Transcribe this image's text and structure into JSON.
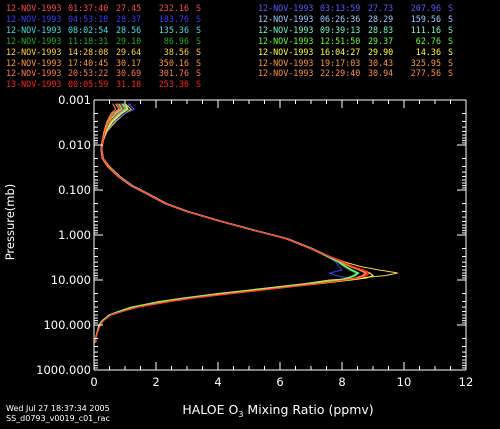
{
  "footer": {
    "date": "Wed Jul 27 18:37:34 2005",
    "file": "SS_d0793_v0019_c01_rac"
  },
  "legend_left": [
    {
      "date": "12-NOV-1993",
      "time": "01:37:40",
      "val": "27.45",
      "lon": "232.16",
      "hem": "S",
      "color": "#ff4a4a"
    },
    {
      "date": "12-NOV-1993",
      "time": "04:53:18",
      "val": "28.37",
      "lon": "183.76",
      "hem": "S",
      "color": "#3a3aff"
    },
    {
      "date": "12-NOV-1993",
      "time": "08:02:54",
      "val": "28.56",
      "lon": "135.36",
      "hem": "S",
      "color": "#33e6e6"
    },
    {
      "date": "12-NOV-1993",
      "time": "11:18:31",
      "val": "29.10",
      "lon": "86.96",
      "hem": "S",
      "color": "#22aa22"
    },
    {
      "date": "12-NOV-1993",
      "time": "14:28:08",
      "val": "29.64",
      "lon": "38.56",
      "hem": "S",
      "color": "#ffd23a"
    },
    {
      "date": "12-NOV-1993",
      "time": "17:40:45",
      "val": "30.17",
      "lon": "350.16",
      "hem": "S",
      "color": "#ff9933"
    },
    {
      "date": "12-NOV-1993",
      "time": "20:53:22",
      "val": "30.69",
      "lon": "301.76",
      "hem": "S",
      "color": "#ff7744"
    },
    {
      "date": "13-NOV-1993",
      "time": "00:05:59",
      "val": "31.18",
      "lon": "253.36",
      "hem": "S",
      "color": "#ff2222"
    }
  ],
  "legend_right": [
    {
      "date": "12-NOV-1993",
      "time": "03:13:59",
      "val": "27.73",
      "lon": "207.96",
      "hem": "S",
      "color": "#5a5aff"
    },
    {
      "date": "12-NOV-1993",
      "time": "06:26:36",
      "val": "28.29",
      "lon": "159.56",
      "hem": "S",
      "color": "#99ccff"
    },
    {
      "date": "12-NOV-1993",
      "time": "09:39:13",
      "val": "28.83",
      "lon": "111.16",
      "hem": "S",
      "color": "#66ffcc"
    },
    {
      "date": "12-NOV-1993",
      "time": "12:51:50",
      "val": "29.37",
      "lon": "62.76",
      "hem": "S",
      "color": "#66ff33"
    },
    {
      "date": "12-NOV-1993",
      "time": "16:04:27",
      "val": "29.90",
      "lon": "14.36",
      "hem": "S",
      "color": "#ffff33"
    },
    {
      "date": "12-NOV-1993",
      "time": "19:17:03",
      "val": "30.43",
      "lon": "325.95",
      "hem": "S",
      "color": "#ff9933"
    },
    {
      "date": "12-NOV-1993",
      "time": "22:29:40",
      "val": "30.94",
      "lon": "277.56",
      "hem": "S",
      "color": "#ff8c3a"
    }
  ],
  "chart_data": {
    "type": "line",
    "xlabel_pre": "HALOE O",
    "xlabel_sub": "3",
    "xlabel_post": " Mixing Ratio (ppmv)",
    "ylabel": "Pressure(mb)",
    "xlim": [
      0,
      12
    ],
    "ylim": [
      0.001,
      1000
    ],
    "y_scale": "log",
    "y_reversed": true,
    "x_ticks": [
      "0",
      "2",
      "4",
      "6",
      "8",
      "10",
      "12"
    ],
    "y_ticks": [
      "0.001",
      "0.010",
      "0.100",
      "1.000",
      "10.000",
      "100.000",
      "1000.000"
    ],
    "profile_pressure": [
      0.0012,
      0.0016,
      0.002,
      0.003,
      0.005,
      0.008,
      0.012,
      0.02,
      0.03,
      0.05,
      0.08,
      0.12,
      0.2,
      0.3,
      0.5,
      0.8,
      1.2,
      2,
      3,
      4,
      5,
      6,
      7,
      8,
      9,
      10,
      12,
      15,
      20,
      25,
      30,
      40,
      50,
      60,
      80,
      100,
      150,
      200,
      250
    ],
    "series": [
      {
        "color": "#ff4a4a",
        "values": [
          0.8,
          0.9,
          0.7,
          0.5,
          0.35,
          0.3,
          0.25,
          0.3,
          0.45,
          0.8,
          1.2,
          1.7,
          2.3,
          3.0,
          4.1,
          5.2,
          6.2,
          7.0,
          7.6,
          8.0,
          8.3,
          8.6,
          8.8,
          8.7,
          8.5,
          8.1,
          7.2,
          6.0,
          4.4,
          3.2,
          2.4,
          1.4,
          0.9,
          0.55,
          0.3,
          0.2,
          0.1,
          0.06,
          0.05
        ]
      },
      {
        "color": "#3a3aff",
        "values": [
          1.2,
          1.0,
          0.8,
          0.6,
          0.4,
          0.3,
          0.25,
          0.3,
          0.5,
          0.85,
          1.25,
          1.75,
          2.35,
          3.05,
          4.15,
          5.25,
          6.25,
          7.05,
          7.5,
          7.8,
          7.9,
          8.0,
          7.6,
          7.8,
          8.2,
          7.9,
          7.1,
          5.9,
          4.3,
          3.1,
          2.3,
          1.3,
          0.85,
          0.5,
          0.28,
          0.18,
          0.1,
          0.06,
          0.05
        ]
      },
      {
        "color": "#33e6e6",
        "values": [
          0.9,
          1.1,
          0.9,
          0.6,
          0.38,
          0.28,
          0.24,
          0.28,
          0.48,
          0.82,
          1.22,
          1.72,
          2.32,
          3.02,
          4.12,
          5.22,
          6.22,
          7.02,
          7.55,
          7.9,
          8.1,
          8.3,
          8.5,
          8.4,
          8.2,
          7.9,
          7.0,
          5.8,
          4.2,
          3.0,
          2.2,
          1.25,
          0.8,
          0.5,
          0.27,
          0.17,
          0.1,
          0.06,
          0.05
        ]
      },
      {
        "color": "#22aa22",
        "values": [
          0.7,
          0.8,
          0.6,
          0.45,
          0.33,
          0.27,
          0.23,
          0.27,
          0.44,
          0.78,
          1.18,
          1.68,
          2.28,
          2.98,
          4.08,
          5.18,
          6.18,
          6.98,
          7.5,
          7.85,
          8.05,
          8.25,
          8.45,
          8.35,
          8.15,
          7.85,
          6.95,
          5.75,
          4.15,
          2.95,
          2.15,
          1.2,
          0.78,
          0.48,
          0.26,
          0.16,
          0.09,
          0.05,
          0.04
        ]
      },
      {
        "color": "#ffd23a",
        "values": [
          1.0,
          1.2,
          1.0,
          0.7,
          0.42,
          0.3,
          0.25,
          0.3,
          0.5,
          0.84,
          1.24,
          1.74,
          2.34,
          3.04,
          4.14,
          5.24,
          6.24,
          7.04,
          7.6,
          8.1,
          8.6,
          9.2,
          9.8,
          9.4,
          8.6,
          7.6,
          6.8,
          5.6,
          4.0,
          2.9,
          2.1,
          1.2,
          0.78,
          0.48,
          0.26,
          0.16,
          0.09,
          0.05,
          0.04
        ]
      },
      {
        "color": "#ff9933",
        "values": [
          0.6,
          0.7,
          0.55,
          0.42,
          0.32,
          0.26,
          0.22,
          0.26,
          0.43,
          0.77,
          1.17,
          1.67,
          2.27,
          2.97,
          4.07,
          5.17,
          6.17,
          6.97,
          7.55,
          7.95,
          8.25,
          8.55,
          8.75,
          8.65,
          8.45,
          8.05,
          7.15,
          5.95,
          4.35,
          3.15,
          2.35,
          1.35,
          0.88,
          0.52,
          0.29,
          0.19,
          0.1,
          0.06,
          0.05
        ]
      },
      {
        "color": "#ff7744",
        "values": [
          0.75,
          0.85,
          0.65,
          0.48,
          0.34,
          0.28,
          0.24,
          0.28,
          0.46,
          0.8,
          1.2,
          1.7,
          2.3,
          3.0,
          4.1,
          5.2,
          6.2,
          7.0,
          7.58,
          7.98,
          8.28,
          8.58,
          8.78,
          8.68,
          8.48,
          8.08,
          7.18,
          5.98,
          4.38,
          3.18,
          2.38,
          1.38,
          0.9,
          0.54,
          0.3,
          0.2,
          0.1,
          0.06,
          0.05
        ]
      },
      {
        "color": "#ff2222",
        "values": [
          0.85,
          0.95,
          0.75,
          0.52,
          0.36,
          0.29,
          0.25,
          0.29,
          0.47,
          0.81,
          1.21,
          1.71,
          2.31,
          3.01,
          4.11,
          5.21,
          6.21,
          7.01,
          7.62,
          8.05,
          8.35,
          8.7,
          8.9,
          8.8,
          8.6,
          8.2,
          7.3,
          6.1,
          4.5,
          3.3,
          2.5,
          1.45,
          0.92,
          0.56,
          0.31,
          0.21,
          0.11,
          0.06,
          0.05
        ]
      },
      {
        "color": "#5a5aff",
        "values": [
          1.1,
          1.3,
          1.0,
          0.65,
          0.4,
          0.3,
          0.25,
          0.3,
          0.5,
          0.85,
          1.25,
          1.75,
          2.35,
          3.05,
          4.15,
          5.25,
          6.25,
          7.05,
          7.6,
          7.95,
          8.15,
          8.35,
          8.55,
          8.45,
          8.25,
          7.95,
          7.05,
          5.85,
          4.25,
          3.05,
          2.25,
          1.3,
          0.85,
          0.5,
          0.28,
          0.18,
          0.1,
          0.06,
          0.05
        ]
      },
      {
        "color": "#99ccff",
        "values": [
          0.95,
          1.05,
          0.85,
          0.58,
          0.37,
          0.29,
          0.24,
          0.29,
          0.48,
          0.82,
          1.22,
          1.72,
          2.32,
          3.02,
          4.12,
          5.22,
          6.22,
          7.02,
          7.56,
          7.92,
          8.12,
          8.32,
          8.52,
          8.42,
          8.22,
          7.92,
          7.02,
          5.82,
          4.22,
          3.02,
          2.22,
          1.27,
          0.82,
          0.5,
          0.27,
          0.17,
          0.1,
          0.06,
          0.05
        ]
      },
      {
        "color": "#66ffcc",
        "values": [
          0.8,
          0.9,
          0.7,
          0.5,
          0.35,
          0.28,
          0.24,
          0.28,
          0.46,
          0.8,
          1.2,
          1.7,
          2.3,
          3.0,
          4.1,
          5.2,
          6.2,
          7.0,
          7.54,
          7.9,
          8.1,
          8.3,
          8.5,
          8.4,
          8.2,
          7.9,
          7.0,
          5.8,
          4.2,
          3.0,
          2.2,
          1.25,
          0.8,
          0.5,
          0.27,
          0.17,
          0.1,
          0.06,
          0.05
        ]
      },
      {
        "color": "#66ff33",
        "values": [
          0.9,
          1.0,
          0.8,
          0.55,
          0.37,
          0.29,
          0.25,
          0.29,
          0.48,
          0.82,
          1.22,
          1.72,
          2.32,
          3.02,
          4.12,
          5.22,
          6.22,
          7.02,
          7.57,
          7.93,
          8.13,
          8.33,
          8.53,
          8.43,
          8.23,
          7.93,
          7.03,
          5.83,
          4.23,
          3.03,
          2.23,
          1.28,
          0.83,
          0.51,
          0.28,
          0.18,
          0.1,
          0.06,
          0.05
        ]
      },
      {
        "color": "#ffff33",
        "values": [
          1.0,
          1.1,
          0.9,
          0.6,
          0.39,
          0.3,
          0.25,
          0.3,
          0.49,
          0.83,
          1.23,
          1.73,
          2.33,
          3.03,
          4.13,
          5.23,
          6.23,
          7.03,
          7.6,
          8.0,
          8.3,
          8.6,
          8.9,
          9.0,
          8.8,
          8.3,
          7.3,
          6.0,
          4.4,
          3.2,
          2.4,
          1.4,
          0.9,
          0.55,
          0.3,
          0.2,
          0.1,
          0.06,
          0.05
        ]
      },
      {
        "color": "#ff8c3a",
        "values": [
          0.7,
          0.8,
          0.6,
          0.46,
          0.34,
          0.27,
          0.23,
          0.27,
          0.45,
          0.79,
          1.19,
          1.69,
          2.29,
          2.99,
          4.09,
          5.19,
          6.19,
          6.99,
          7.56,
          7.96,
          8.26,
          8.56,
          8.76,
          8.66,
          8.46,
          8.06,
          7.16,
          5.96,
          4.36,
          3.16,
          2.36,
          1.36,
          0.89,
          0.53,
          0.3,
          0.2,
          0.1,
          0.06,
          0.05
        ]
      },
      {
        "color": "#ff3333",
        "values": [
          0.85,
          0.95,
          0.75,
          0.5,
          0.36,
          0.29,
          0.25,
          0.29,
          0.47,
          0.81,
          1.21,
          1.71,
          2.31,
          3.01,
          4.11,
          5.21,
          6.21,
          7.01,
          7.6,
          8.02,
          8.32,
          8.65,
          8.85,
          8.75,
          8.55,
          8.15,
          7.25,
          6.05,
          4.45,
          3.25,
          2.45,
          1.42,
          0.91,
          0.55,
          0.31,
          0.21,
          0.11,
          0.06,
          0.05
        ]
      }
    ]
  }
}
